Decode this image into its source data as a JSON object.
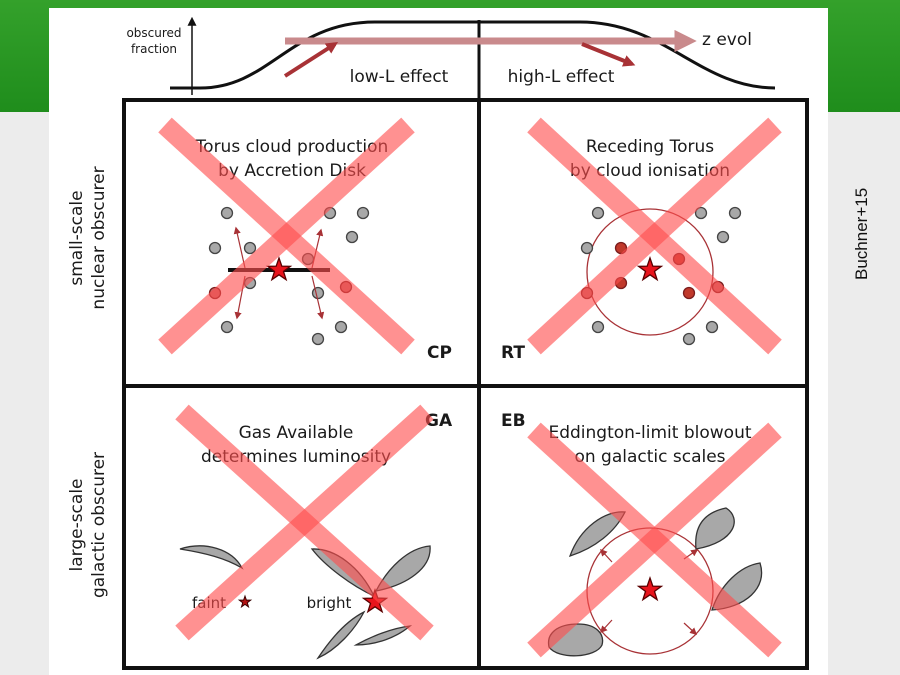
{
  "slide": {
    "citation": "Buchner+15",
    "colors": {
      "header_band": "#2b9a24",
      "cross": "#ff4d4d",
      "arrow": "#a83236",
      "star": "#e8141c"
    }
  },
  "top_curve": {
    "y_axis_label_line1": "obscured",
    "y_axis_label_line2": "fraction",
    "z_label": "z evol",
    "low_label": "low-L effect",
    "high_label": "high-L effect"
  },
  "rows": {
    "small_line1": "small-scale",
    "small_line2": "nuclear obscurer",
    "large_line1": "large-scale",
    "large_line2": "galactic obscurer"
  },
  "quadrants": {
    "cp": {
      "tag": "CP",
      "title1": "Torus cloud production",
      "title2": "by Accretion Disk"
    },
    "rt": {
      "tag": "RT",
      "title1": "Receding Torus",
      "title2": "by cloud ionisation"
    },
    "ga": {
      "tag": "GA",
      "title1": "Gas Available",
      "title2": "determines luminosity",
      "faint": "faint",
      "bright": "bright"
    },
    "eb": {
      "tag": "EB",
      "title1": "Eddington-limit blowout",
      "title2": "on galactic scales"
    }
  }
}
